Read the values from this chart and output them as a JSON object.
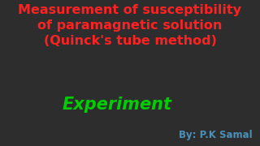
{
  "background_color": "#2d2d2d",
  "title_line1": "Measurement of susceptibility",
  "title_line2": "of paramagnetic solution",
  "title_line3": "(Quinck's tube method)",
  "title_color": "#ff2222",
  "title_fontsize": 11.5,
  "title_fontweight": "bold",
  "experiment_text": "Experiment",
  "experiment_color": "#00cc00",
  "experiment_fontsize": 15,
  "byline_text": "By: P.K Samal",
  "byline_color": "#4a90b8",
  "byline_fontsize": 8.5,
  "byline_fontweight": "bold"
}
